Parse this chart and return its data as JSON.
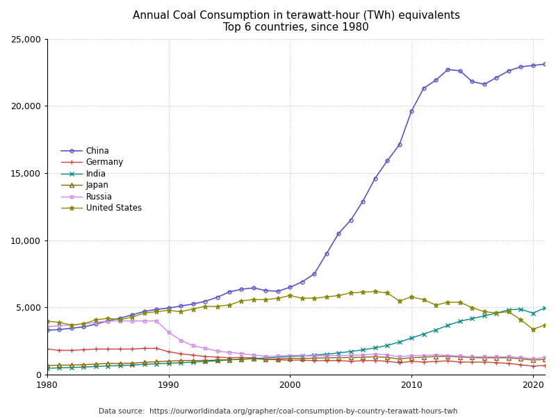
{
  "title": "Annual Coal Consumption in terawatt-hour (TWh) equivalents",
  "subtitle": "Top 6 countries, since 1980",
  "source": "Data source:  https://ourworldindata.org/grapher/coal-consumption-by-country-terawatt-hours-twh",
  "ylim": [
    0,
    25000
  ],
  "yticks": [
    0,
    5000,
    10000,
    15000,
    20000,
    25000
  ],
  "xlim": [
    1980,
    2021
  ],
  "xticks": [
    1980,
    1990,
    2000,
    2010,
    2020
  ],
  "background_color": "#ffffff",
  "grid_color": "#bbbbbb",
  "series": {
    "China": {
      "color": "#5555cc",
      "marker": "o",
      "markersize": 3.5,
      "markerfacecolor": "none",
      "linewidth": 1.2,
      "data": {
        "1980": 3300,
        "1981": 3350,
        "1982": 3450,
        "1983": 3550,
        "1984": 3750,
        "1985": 4000,
        "1986": 4200,
        "1987": 4450,
        "1988": 4700,
        "1989": 4850,
        "1990": 4950,
        "1991": 5100,
        "1992": 5250,
        "1993": 5450,
        "1994": 5750,
        "1995": 6150,
        "1996": 6350,
        "1997": 6450,
        "1998": 6250,
        "1999": 6200,
        "2000": 6500,
        "2001": 6900,
        "2002": 7500,
        "2003": 9000,
        "2004": 10500,
        "2005": 11500,
        "2006": 12900,
        "2007": 14600,
        "2008": 15900,
        "2009": 17100,
        "2010": 19600,
        "2011": 21300,
        "2012": 21900,
        "2013": 22700,
        "2014": 22600,
        "2015": 21800,
        "2016": 21600,
        "2017": 22100,
        "2018": 22600,
        "2019": 22900,
        "2020": 23000,
        "2021": 23100
      }
    },
    "Germany": {
      "color": "#cc4444",
      "marker": "+",
      "markersize": 5,
      "markerfacecolor": "#cc4444",
      "linewidth": 1.0,
      "data": {
        "1980": 1900,
        "1981": 1800,
        "1982": 1800,
        "1983": 1850,
        "1984": 1900,
        "1985": 1900,
        "1986": 1900,
        "1987": 1900,
        "1988": 1950,
        "1989": 1950,
        "1990": 1700,
        "1991": 1550,
        "1992": 1450,
        "1993": 1350,
        "1994": 1300,
        "1995": 1250,
        "1996": 1280,
        "1997": 1240,
        "1998": 1150,
        "1999": 1100,
        "2000": 1070,
        "2001": 1080,
        "2002": 1030,
        "2003": 1040,
        "2004": 1040,
        "2005": 990,
        "2006": 1030,
        "2007": 1040,
        "2008": 990,
        "2009": 880,
        "2010": 980,
        "2011": 930,
        "2012": 980,
        "2013": 1020,
        "2014": 930,
        "2015": 930,
        "2016": 930,
        "2017": 890,
        "2018": 830,
        "2019": 730,
        "2020": 630,
        "2021": 680
      }
    },
    "India": {
      "color": "#008888",
      "marker": "x",
      "markersize": 5,
      "markerfacecolor": "#008888",
      "linewidth": 1.0,
      "data": {
        "1980": 470,
        "1981": 500,
        "1982": 530,
        "1983": 560,
        "1984": 600,
        "1985": 640,
        "1986": 670,
        "1987": 710,
        "1988": 760,
        "1989": 800,
        "1990": 840,
        "1991": 880,
        "1992": 930,
        "1993": 980,
        "1994": 1030,
        "1995": 1090,
        "1996": 1150,
        "1997": 1190,
        "1998": 1240,
        "1999": 1290,
        "2000": 1350,
        "2001": 1390,
        "2002": 1450,
        "2003": 1520,
        "2004": 1610,
        "2005": 1720,
        "2006": 1840,
        "2007": 1990,
        "2008": 2170,
        "2009": 2420,
        "2010": 2720,
        "2011": 3020,
        "2012": 3320,
        "2013": 3670,
        "2014": 3970,
        "2015": 4170,
        "2016": 4370,
        "2017": 4570,
        "2018": 4820,
        "2019": 4870,
        "2020": 4570,
        "2021": 4970
      }
    },
    "Japan": {
      "color": "#886600",
      "marker": "^",
      "markersize": 4,
      "markerfacecolor": "none",
      "linewidth": 1.0,
      "data": {
        "1980": 680,
        "1981": 700,
        "1982": 710,
        "1983": 740,
        "1984": 780,
        "1985": 830,
        "1986": 830,
        "1987": 850,
        "1988": 910,
        "1989": 960,
        "1990": 1000,
        "1991": 1040,
        "1992": 1050,
        "1993": 1050,
        "1994": 1080,
        "1995": 1110,
        "1996": 1140,
        "1997": 1180,
        "1998": 1130,
        "1999": 1160,
        "2000": 1210,
        "2001": 1200,
        "2002": 1220,
        "2003": 1250,
        "2004": 1260,
        "2005": 1270,
        "2006": 1290,
        "2007": 1330,
        "2008": 1280,
        "2009": 1160,
        "2010": 1260,
        "2011": 1290,
        "2012": 1350,
        "2013": 1360,
        "2014": 1310,
        "2015": 1270,
        "2016": 1250,
        "2017": 1250,
        "2018": 1250,
        "2019": 1180,
        "2020": 1080,
        "2021": 1130
      }
    },
    "Russia": {
      "color": "#cc88ee",
      "marker": "s",
      "markersize": 3.5,
      "markerfacecolor": "none",
      "linewidth": 1.0,
      "data": {
        "1980": 3550,
        "1981": 3650,
        "1982": 3680,
        "1983": 3780,
        "1984": 3880,
        "1985": 3980,
        "1986": 3990,
        "1987": 3990,
        "1988": 3990,
        "1989": 3990,
        "1990": 3150,
        "1991": 2550,
        "1992": 2150,
        "1993": 1950,
        "1994": 1750,
        "1995": 1650,
        "1996": 1560,
        "1997": 1460,
        "1998": 1360,
        "1999": 1370,
        "2000": 1420,
        "2001": 1420,
        "2002": 1380,
        "2003": 1420,
        "2004": 1420,
        "2005": 1420,
        "2006": 1470,
        "2007": 1520,
        "2008": 1470,
        "2009": 1320,
        "2010": 1420,
        "2011": 1420,
        "2012": 1470,
        "2013": 1420,
        "2014": 1370,
        "2015": 1320,
        "2016": 1320,
        "2017": 1320,
        "2018": 1320,
        "2019": 1270,
        "2020": 1170,
        "2021": 1270
      }
    },
    "United States": {
      "color": "#888800",
      "marker": "*",
      "markersize": 5,
      "markerfacecolor": "#888800",
      "linewidth": 1.0,
      "data": {
        "1980": 3980,
        "1981": 3880,
        "1982": 3680,
        "1983": 3780,
        "1984": 4080,
        "1985": 4180,
        "1986": 4080,
        "1987": 4280,
        "1988": 4580,
        "1989": 4680,
        "1990": 4780,
        "1991": 4680,
        "1992": 4880,
        "1993": 5080,
        "1994": 5080,
        "1995": 5180,
        "1996": 5480,
        "1997": 5580,
        "1998": 5580,
        "1999": 5680,
        "2000": 5880,
        "2001": 5680,
        "2002": 5680,
        "2003": 5780,
        "2004": 5880,
        "2005": 6080,
        "2006": 6130,
        "2007": 6180,
        "2008": 6080,
        "2009": 5480,
        "2010": 5780,
        "2011": 5580,
        "2012": 5180,
        "2013": 5380,
        "2014": 5380,
        "2015": 4980,
        "2016": 4680,
        "2017": 4580,
        "2018": 4680,
        "2019": 4080,
        "2020": 3380,
        "2021": 3680
      }
    }
  }
}
